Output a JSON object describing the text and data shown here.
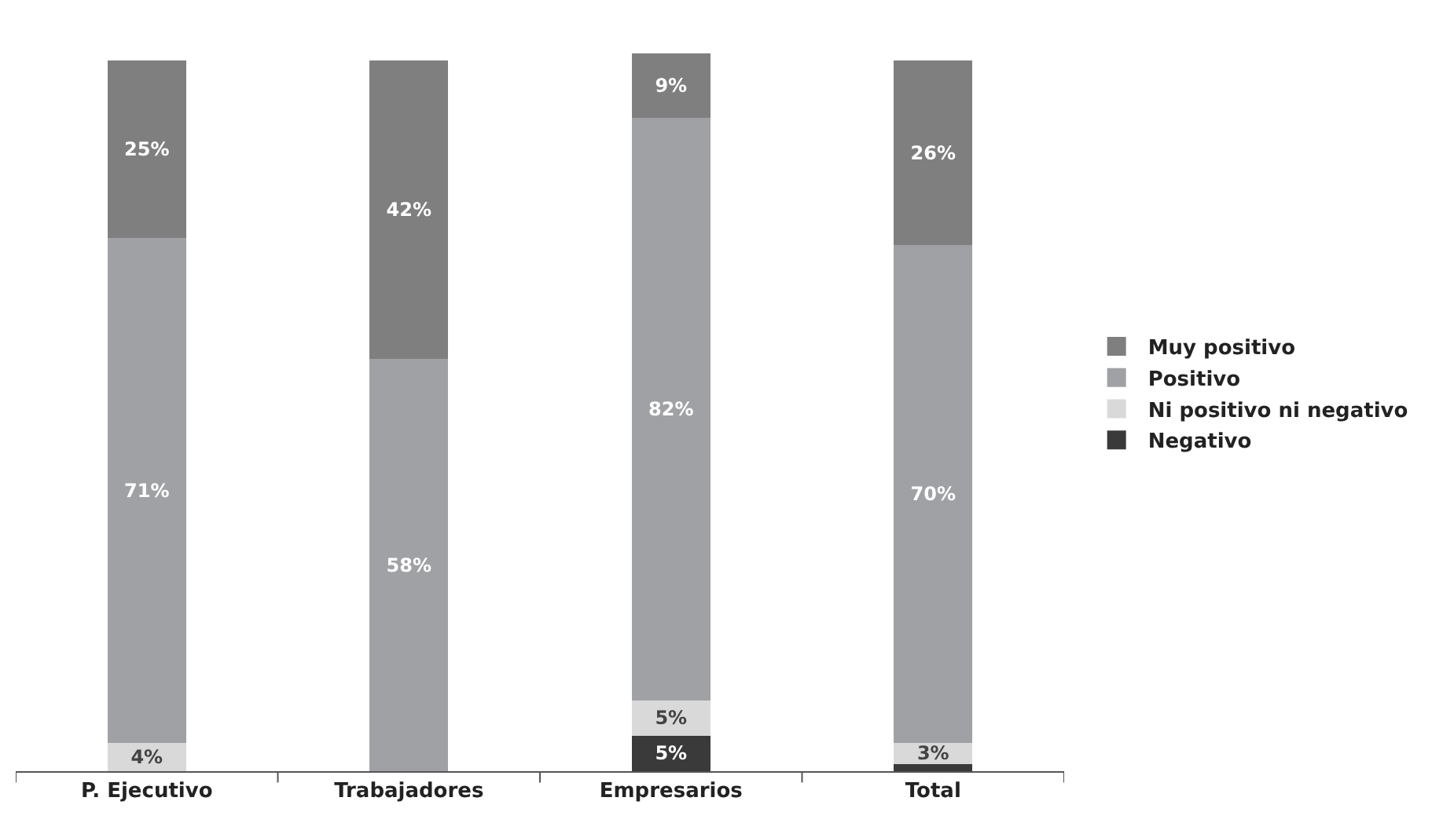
{
  "chart_data": {
    "type": "bar",
    "stacked": true,
    "categories": [
      "P. Ejecutivo",
      "Trabajadores",
      "Empresarios",
      "Total"
    ],
    "series": [
      {
        "name": "Negativo",
        "color": "#3a3a3a",
        "values": [
          0,
          0,
          5,
          1
        ],
        "value_labels": [
          null,
          null,
          "5%",
          null
        ]
      },
      {
        "name": "Ni positivo ni negativo",
        "color": "#d9d9da",
        "values": [
          4,
          0,
          5,
          3
        ],
        "value_labels": [
          "4%",
          null,
          "5%",
          "3%"
        ]
      },
      {
        "name": "Positivo",
        "color": "#a0a1a4",
        "values": [
          71,
          58,
          82,
          70
        ],
        "value_labels": [
          "71%",
          "58%",
          "82%",
          "70%"
        ]
      },
      {
        "name": "Muy positivo",
        "color": "#7f7f80",
        "values": [
          25,
          42,
          9,
          26
        ],
        "value_labels": [
          "25%",
          "42%",
          "9%",
          "26%"
        ]
      }
    ],
    "legend": "right"
  }
}
